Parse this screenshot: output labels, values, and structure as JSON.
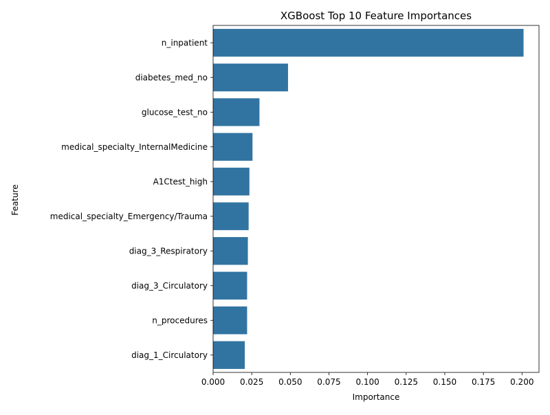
{
  "chart_data": {
    "type": "bar",
    "orientation": "horizontal",
    "title": "XGBoost Top 10 Feature Importances",
    "xlabel": "Importance",
    "ylabel": "Feature",
    "categories": [
      "n_inpatient",
      "diabetes_med_no",
      "glucose_test_no",
      "medical_specialty_InternalMedicine",
      "A1Ctest_high",
      "medical_specialty_Emergency/Trauma",
      "diag_3_Respiratory",
      "diag_3_Circulatory",
      "n_procedures",
      "diag_1_Circulatory"
    ],
    "values": [
      0.201,
      0.0485,
      0.03,
      0.0255,
      0.0235,
      0.023,
      0.0225,
      0.022,
      0.022,
      0.0205
    ],
    "xlim": [
      0,
      0.211
    ],
    "xticks": [
      "0.000",
      "0.025",
      "0.050",
      "0.075",
      "0.100",
      "0.125",
      "0.150",
      "0.175",
      "0.200"
    ],
    "bar_color": "#3274a1",
    "grid": false,
    "legend": "none"
  }
}
